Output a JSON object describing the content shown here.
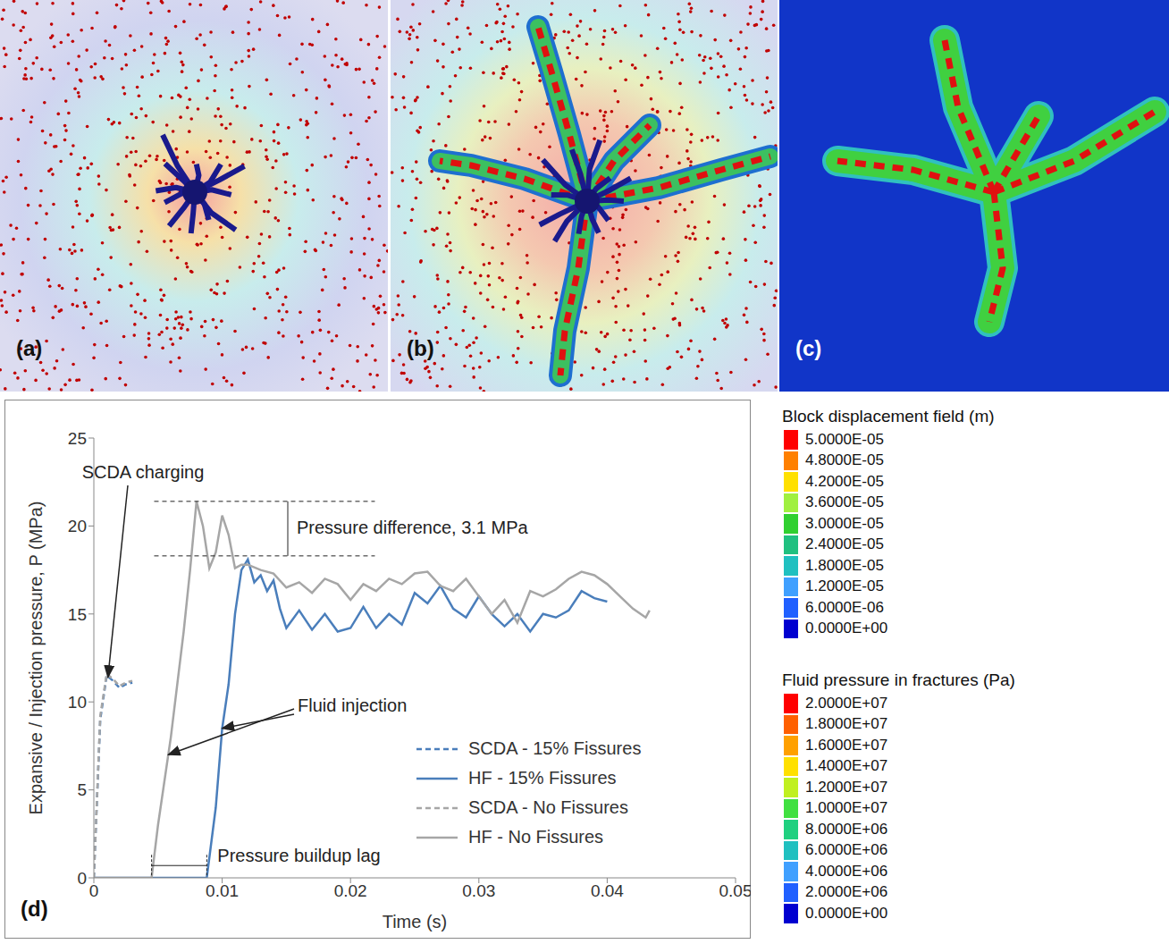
{
  "panel_labels": [
    "(a)",
    "(b)",
    "(c)"
  ],
  "chart_data": {
    "type": "line",
    "panel_label": "(d)",
    "x_label": "Time (s)",
    "y_label": "Expansive / Injection pressure, P (MPa)",
    "xlim": [
      0,
      0.05
    ],
    "xticks": [
      0,
      0.01,
      0.02,
      0.03,
      0.04,
      0.05
    ],
    "ylim": [
      0,
      25
    ],
    "yticks": [
      0,
      5,
      10,
      15,
      20,
      25
    ],
    "grid": false,
    "legend": "lower right",
    "series": [
      {
        "name": "SCDA - 15% Fissures",
        "color": "#4a7ebb",
        "line_style": "dashed",
        "x": [
          0,
          0.0005,
          0.001,
          0.0015,
          0.002,
          0.0025,
          0.003
        ],
        "values": [
          0,
          9,
          11.5,
          11.2,
          10.8,
          11,
          11.1
        ]
      },
      {
        "name": "HF - 15% Fissures",
        "color": "#4a7ebb",
        "line_style": "solid",
        "x": [
          0,
          0.0088,
          0.0095,
          0.01,
          0.0105,
          0.011,
          0.0115,
          0.012,
          0.0125,
          0.013,
          0.0135,
          0.014,
          0.0145,
          0.015,
          0.016,
          0.017,
          0.018,
          0.019,
          0.02,
          0.021,
          0.022,
          0.023,
          0.024,
          0.025,
          0.026,
          0.027,
          0.028,
          0.029,
          0.03,
          0.031,
          0.032,
          0.033,
          0.034,
          0.035,
          0.036,
          0.037,
          0.038,
          0.039,
          0.04
        ],
        "values": [
          0,
          0,
          4,
          8.5,
          11,
          15,
          17.5,
          18.1,
          16.8,
          17.2,
          16.3,
          16.9,
          15.3,
          14.2,
          15.2,
          14.1,
          15,
          14,
          14.2,
          15.4,
          14.2,
          15,
          14.4,
          16.2,
          15.6,
          16.6,
          15.3,
          14.8,
          16,
          15,
          14.3,
          15,
          14,
          15,
          14.8,
          15.2,
          16.3,
          15.9,
          15.7
        ]
      },
      {
        "name": "SCDA - No Fissures",
        "color": "#a6a6a6",
        "line_style": "dashed",
        "x": [
          0,
          0.0005,
          0.001,
          0.0015,
          0.002,
          0.0025,
          0.003
        ],
        "values": [
          0,
          9.2,
          11.6,
          11.3,
          10.9,
          11.1,
          11.2
        ]
      },
      {
        "name": "HF - No Fissures",
        "color": "#a6a6a6",
        "line_style": "solid",
        "x": [
          0,
          0.0045,
          0.005,
          0.006,
          0.007,
          0.0075,
          0.008,
          0.0085,
          0.009,
          0.0095,
          0.01,
          0.0105,
          0.011,
          0.0115,
          0.012,
          0.013,
          0.014,
          0.015,
          0.016,
          0.017,
          0.018,
          0.019,
          0.02,
          0.021,
          0.022,
          0.023,
          0.024,
          0.025,
          0.026,
          0.027,
          0.028,
          0.029,
          0.03,
          0.031,
          0.032,
          0.033,
          0.034,
          0.035,
          0.036,
          0.037,
          0.038,
          0.039,
          0.04,
          0.041,
          0.042,
          0.043,
          0.0433
        ],
        "values": [
          0,
          0,
          3,
          8,
          14,
          17.5,
          21.4,
          20,
          17.6,
          18.5,
          20.6,
          19.5,
          17.6,
          17.8,
          17.8,
          17.5,
          17.3,
          16.5,
          16.8,
          16.2,
          17,
          16.7,
          15.8,
          16.7,
          16.3,
          17,
          16.7,
          17.3,
          17.4,
          16.6,
          16.3,
          17,
          16,
          15,
          15.8,
          14.5,
          16.3,
          16,
          16.4,
          17,
          17.4,
          17.2,
          16.7,
          16,
          15.3,
          14.8,
          15.2
        ]
      }
    ],
    "annotations": [
      {
        "text": "SCDA charging",
        "x": 0.0011,
        "y": 11.4
      },
      {
        "text": "Pressure difference, 3.1 MPa",
        "x": [
          0.0047,
          0.0219
        ],
        "y": [
          21.4,
          18.3
        ]
      },
      {
        "text": "Fluid injection",
        "x": [
          0.0058,
          0.01
        ],
        "y": [
          7,
          8.5
        ]
      },
      {
        "text": "Pressure buildup lag",
        "x": [
          0.0045,
          0.0088
        ],
        "y": 0.7
      }
    ]
  },
  "colorbars": [
    {
      "title": "Block displacement field (m)",
      "colors": [
        "#ff0000",
        "#ff8000",
        "#ffe000",
        "#a0f040",
        "#30d030",
        "#20c080",
        "#20c0c0",
        "#40a0ff",
        "#2060ff",
        "#0000d0"
      ],
      "labels": [
        "5.0000E-05",
        "4.8000E-05",
        "4.2000E-05",
        "3.6000E-05",
        "3.0000E-05",
        "2.4000E-05",
        "1.8000E-05",
        "1.2000E-05",
        "6.0000E-06",
        "0.0000E+00"
      ]
    },
    {
      "title": "Fluid pressure in fractures (Pa)",
      "colors": [
        "#ff0000",
        "#ff6000",
        "#ffa000",
        "#ffe000",
        "#c0f020",
        "#40e040",
        "#20d080",
        "#20c0c0",
        "#40a0ff",
        "#2060ff",
        "#0000d0"
      ],
      "labels": [
        "2.0000E+07",
        "1.8000E+07",
        "1.6000E+07",
        "1.4000E+07",
        "1.2000E+07",
        "1.0000E+07",
        "8.0000E+06",
        "6.0000E+06",
        "4.0000E+06",
        "2.0000E+06",
        "0.0000E+00"
      ]
    }
  ]
}
